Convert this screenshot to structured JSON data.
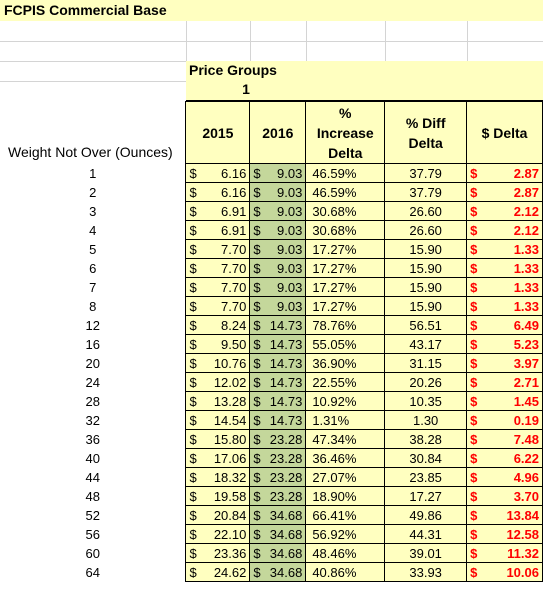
{
  "sheet": {
    "title": "FCPIS Commercial Base",
    "group_label": "Price Groups",
    "group_number": "1",
    "row_header": "Weight Not Over (Ounces)",
    "columns": {
      "y2015": "2015",
      "y2016": "2016",
      "increase_line1": "%",
      "increase_line2": "Increase",
      "increase_line3": "Delta",
      "diff_line1": "% Diff",
      "diff_line2": "Delta",
      "dollar_delta": "$ Delta"
    },
    "currency_symbol": "$",
    "rows": [
      {
        "weight": "1",
        "p2015": "6.16",
        "p2016": "9.03",
        "inc": "46.59%",
        "diff": "37.79",
        "delta": "2.87"
      },
      {
        "weight": "2",
        "p2015": "6.16",
        "p2016": "9.03",
        "inc": "46.59%",
        "diff": "37.79",
        "delta": "2.87"
      },
      {
        "weight": "3",
        "p2015": "6.91",
        "p2016": "9.03",
        "inc": "30.68%",
        "diff": "26.60",
        "delta": "2.12"
      },
      {
        "weight": "4",
        "p2015": "6.91",
        "p2016": "9.03",
        "inc": "30.68%",
        "diff": "26.60",
        "delta": "2.12"
      },
      {
        "weight": "5",
        "p2015": "7.70",
        "p2016": "9.03",
        "inc": "17.27%",
        "diff": "15.90",
        "delta": "1.33"
      },
      {
        "weight": "6",
        "p2015": "7.70",
        "p2016": "9.03",
        "inc": "17.27%",
        "diff": "15.90",
        "delta": "1.33"
      },
      {
        "weight": "7",
        "p2015": "7.70",
        "p2016": "9.03",
        "inc": "17.27%",
        "diff": "15.90",
        "delta": "1.33"
      },
      {
        "weight": "8",
        "p2015": "7.70",
        "p2016": "9.03",
        "inc": "17.27%",
        "diff": "15.90",
        "delta": "1.33"
      },
      {
        "weight": "12",
        "p2015": "8.24",
        "p2016": "14.73",
        "inc": "78.76%",
        "diff": "56.51",
        "delta": "6.49"
      },
      {
        "weight": "16",
        "p2015": "9.50",
        "p2016": "14.73",
        "inc": "55.05%",
        "diff": "43.17",
        "delta": "5.23"
      },
      {
        "weight": "20",
        "p2015": "10.76",
        "p2016": "14.73",
        "inc": "36.90%",
        "diff": "31.15",
        "delta": "3.97"
      },
      {
        "weight": "24",
        "p2015": "12.02",
        "p2016": "14.73",
        "inc": "22.55%",
        "diff": "20.26",
        "delta": "2.71"
      },
      {
        "weight": "28",
        "p2015": "13.28",
        "p2016": "14.73",
        "inc": "10.92%",
        "diff": "10.35",
        "delta": "1.45"
      },
      {
        "weight": "32",
        "p2015": "14.54",
        "p2016": "14.73",
        "inc": "1.31%",
        "diff": "1.30",
        "delta": "0.19"
      },
      {
        "weight": "36",
        "p2015": "15.80",
        "p2016": "23.28",
        "inc": "47.34%",
        "diff": "38.28",
        "delta": "7.48"
      },
      {
        "weight": "40",
        "p2015": "17.06",
        "p2016": "23.28",
        "inc": "36.46%",
        "diff": "30.84",
        "delta": "6.22"
      },
      {
        "weight": "44",
        "p2015": "18.32",
        "p2016": "23.28",
        "inc": "27.07%",
        "diff": "23.85",
        "delta": "4.96"
      },
      {
        "weight": "48",
        "p2015": "19.58",
        "p2016": "23.28",
        "inc": "18.90%",
        "diff": "17.27",
        "delta": "3.70"
      },
      {
        "weight": "52",
        "p2015": "20.84",
        "p2016": "34.68",
        "inc": "66.41%",
        "diff": "49.86",
        "delta": "13.84"
      },
      {
        "weight": "56",
        "p2015": "22.10",
        "p2016": "34.68",
        "inc": "56.92%",
        "diff": "44.31",
        "delta": "12.58"
      },
      {
        "weight": "60",
        "p2015": "23.36",
        "p2016": "34.68",
        "inc": "48.46%",
        "diff": "39.01",
        "delta": "11.32"
      },
      {
        "weight": "64",
        "p2015": "24.62",
        "p2016": "34.68",
        "inc": "40.86%",
        "diff": "33.93",
        "delta": "10.06"
      }
    ],
    "colors": {
      "header_fill": "#ffffc0",
      "col2016_fill": "#c4d79b",
      "delta_text": "#ff0000"
    }
  }
}
